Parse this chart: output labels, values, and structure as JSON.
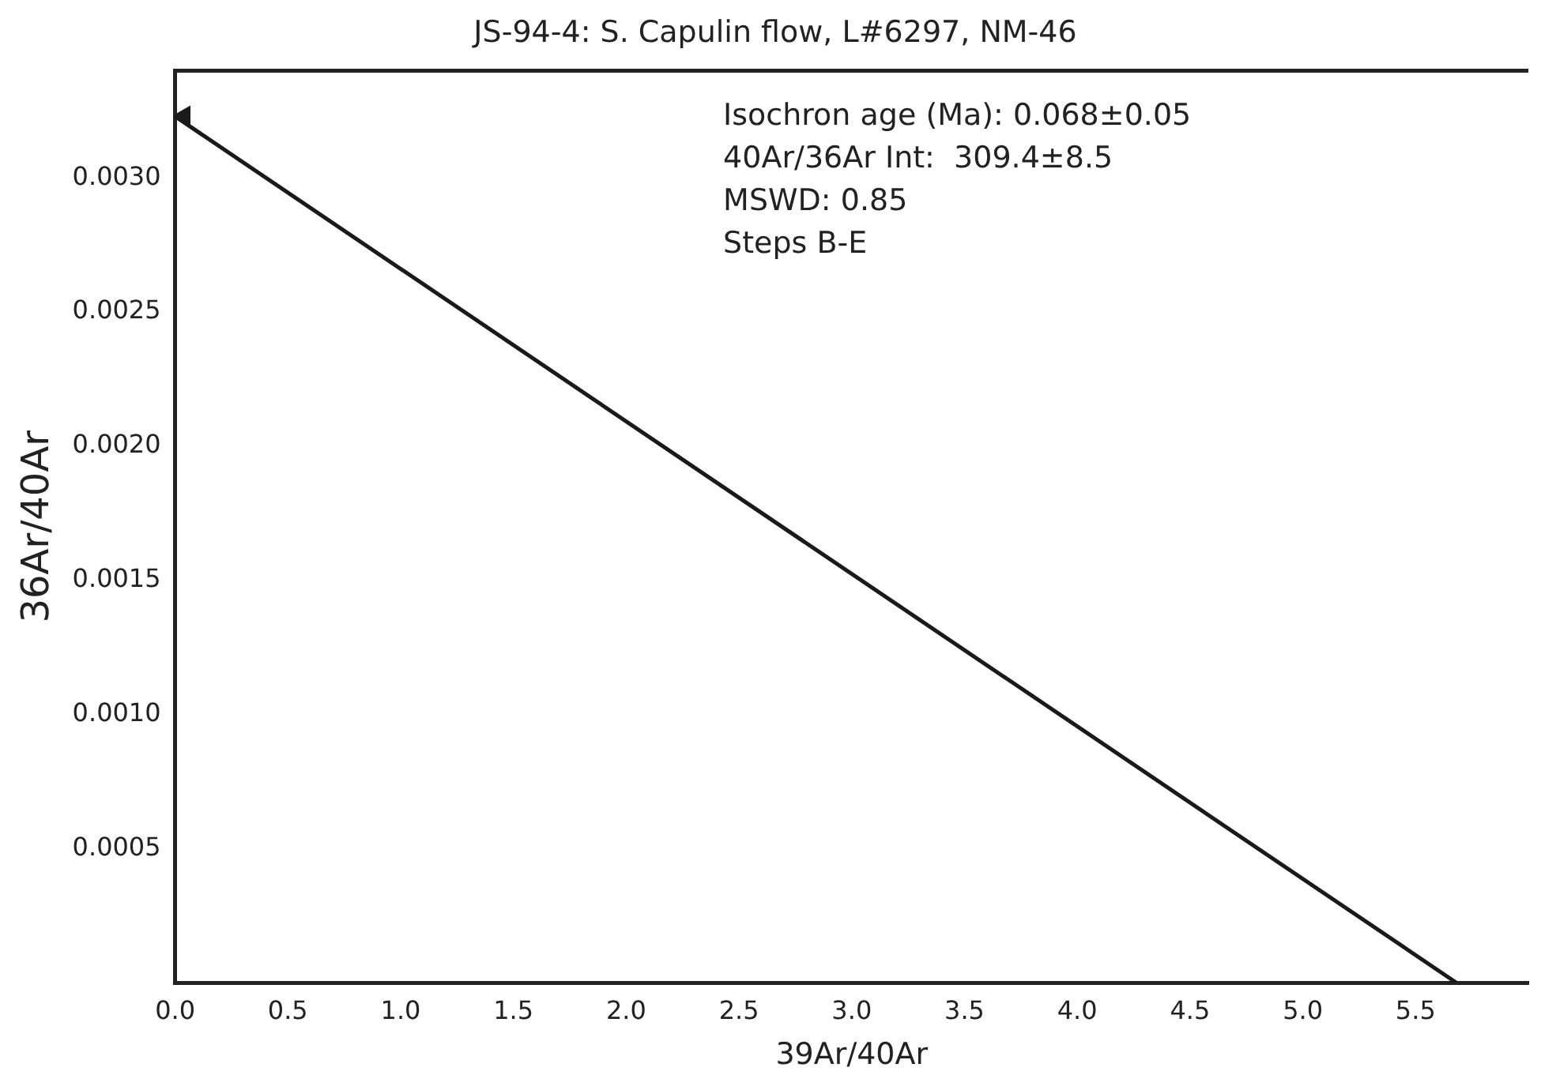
{
  "chart_data": {
    "type": "line",
    "title": "JS-94-4: S. Capulin flow, L#6297, NM-46",
    "xlabel": "39Ar/40Ar",
    "ylabel": "36Ar/40Ar",
    "series": [
      {
        "x": [
          0,
          5.68
        ],
        "values": [
          0.00323,
          0
        ],
        "color": "#1a1a1a",
        "marker": "none"
      },
      {
        "type": "scatter",
        "x": [
          0.04
        ],
        "values": [
          0.00323
        ],
        "color": "#1a1a1a",
        "marker": "triangle"
      }
    ],
    "xlim": [
      0,
      6.0
    ],
    "ylim": [
      0,
      0.0034
    ],
    "xticks": [
      {
        "value": 0,
        "label": "0.0"
      },
      {
        "value": 0.5,
        "label": "0.5"
      },
      {
        "value": 1,
        "label": "1.0"
      },
      {
        "value": 1.5,
        "label": "1.5"
      },
      {
        "value": 2,
        "label": "2.0"
      },
      {
        "value": 2.5,
        "label": "2.5"
      },
      {
        "value": 3,
        "label": "3.0"
      },
      {
        "value": 3.5,
        "label": "3.5"
      },
      {
        "value": 4,
        "label": "4.0"
      },
      {
        "value": 4.5,
        "label": "4.5"
      },
      {
        "value": 5,
        "label": "5.0"
      },
      {
        "value": 5.5,
        "label": "5.5"
      }
    ],
    "yticks": [
      {
        "value": 0.0005,
        "label": "0.0005"
      },
      {
        "value": 0.001,
        "label": "0.0010"
      },
      {
        "value": 0.0015,
        "label": "0.0015"
      },
      {
        "value": 0.002,
        "label": "0.0020"
      },
      {
        "value": 0.0025,
        "label": "0.0025"
      },
      {
        "value": 0.003,
        "label": "0.0030"
      }
    ],
    "annotations": [
      "Isochron age (Ma): 0.068±0.05",
      "40Ar/36Ar Int:  309.4±8.5",
      "MSWD: 0.85",
      "Steps B-E"
    ],
    "grid": false,
    "legend": false
  }
}
